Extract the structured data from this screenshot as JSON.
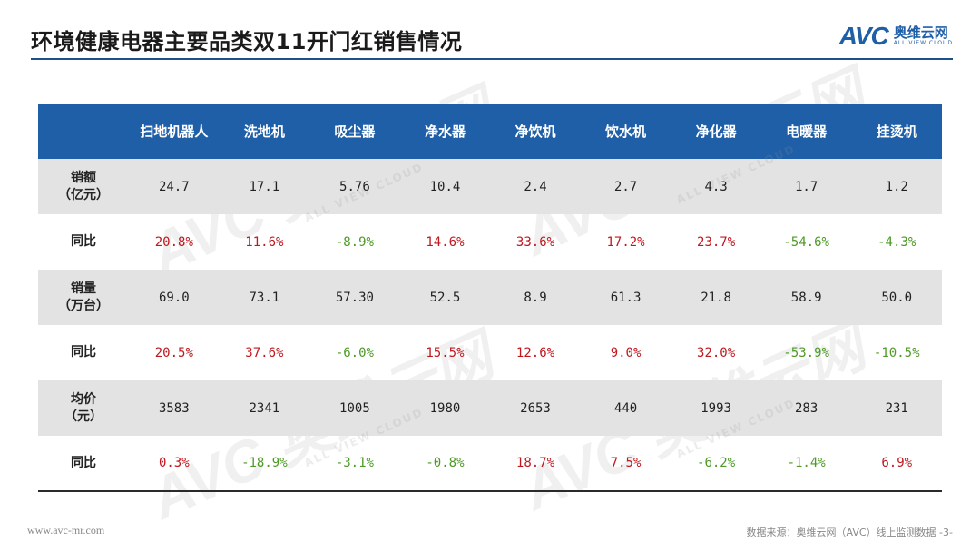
{
  "title": "环境健康电器主要品类双11开门红销售情况",
  "logo": {
    "mark": "AVC",
    "cn": "奥维云网",
    "en": "ALL VIEW CLOUD"
  },
  "watermark": {
    "text": "AVC 奥维云网",
    "sub": "ALL VIEW CLOUD"
  },
  "table": {
    "headers": [
      "",
      "扫地机器人",
      "洗地机",
      "吸尘器",
      "净水器",
      "净饮机",
      "饮水机",
      "净化器",
      "电暖器",
      "挂烫机"
    ],
    "rows": [
      {
        "label": [
          "销额",
          "（亿元）"
        ],
        "values": [
          "24.7",
          "17.1",
          "5.76",
          "10.4",
          "2.4",
          "2.7",
          "4.3",
          "1.7",
          "1.2"
        ]
      },
      {
        "label": [
          "同比"
        ],
        "values": [
          "20.8%",
          "11.6%",
          "-8.9%",
          "14.6%",
          "33.6%",
          "17.2%",
          "23.7%",
          "-54.6%",
          "-4.3%"
        ]
      },
      {
        "label": [
          "销量",
          "（万台）"
        ],
        "values": [
          "69.0",
          "73.1",
          "57.30",
          "52.5",
          "8.9",
          "61.3",
          "21.8",
          "58.9",
          "50.0"
        ]
      },
      {
        "label": [
          "同比"
        ],
        "values": [
          "20.5%",
          "37.6%",
          "-6.0%",
          "15.5%",
          "12.6%",
          "9.0%",
          "32.0%",
          "-53.9%",
          "-10.5%"
        ]
      },
      {
        "label": [
          "均价",
          "（元）"
        ],
        "values": [
          "3583",
          "2341",
          "1005",
          "1980",
          "2653",
          "440",
          "1993",
          "283",
          "231"
        ]
      },
      {
        "label": [
          "同比"
        ],
        "values": [
          "0.3%",
          "-18.9%",
          "-3.1%",
          "-0.8%",
          "18.7%",
          "7.5%",
          "-6.2%",
          "-1.4%",
          "6.9%"
        ]
      }
    ]
  },
  "colors": {
    "header_bg": "#1f5fa8",
    "positive": "#c0181f",
    "negative": "#4e9a27",
    "shade": "#e3e3e3"
  },
  "footer": {
    "left": "www.avc-mr.com",
    "right": "数据来源：奥维云网（AVC）线上监测数据 -3-"
  }
}
